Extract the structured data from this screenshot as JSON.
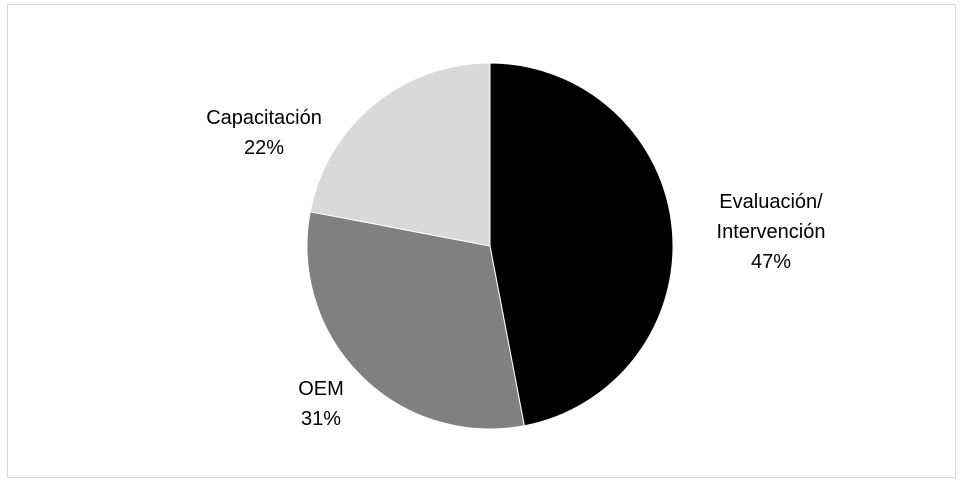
{
  "chart_data": {
    "type": "pie",
    "title": "",
    "slices": [
      {
        "label_lines": [
          "Evaluación/",
          "Intervención"
        ],
        "percent_label": "47%",
        "value": 47,
        "color": "#000000"
      },
      {
        "label_lines": [
          "OEM"
        ],
        "percent_label": "31%",
        "value": 31,
        "color": "#808080"
      },
      {
        "label_lines": [
          "Capacitación"
        ],
        "percent_label": "22%",
        "value": 22,
        "color": "#d9d9d9"
      }
    ],
    "start_angle_deg": 0,
    "direction": "clockwise",
    "legend": "none",
    "slice_border_color": "#ffffff"
  }
}
